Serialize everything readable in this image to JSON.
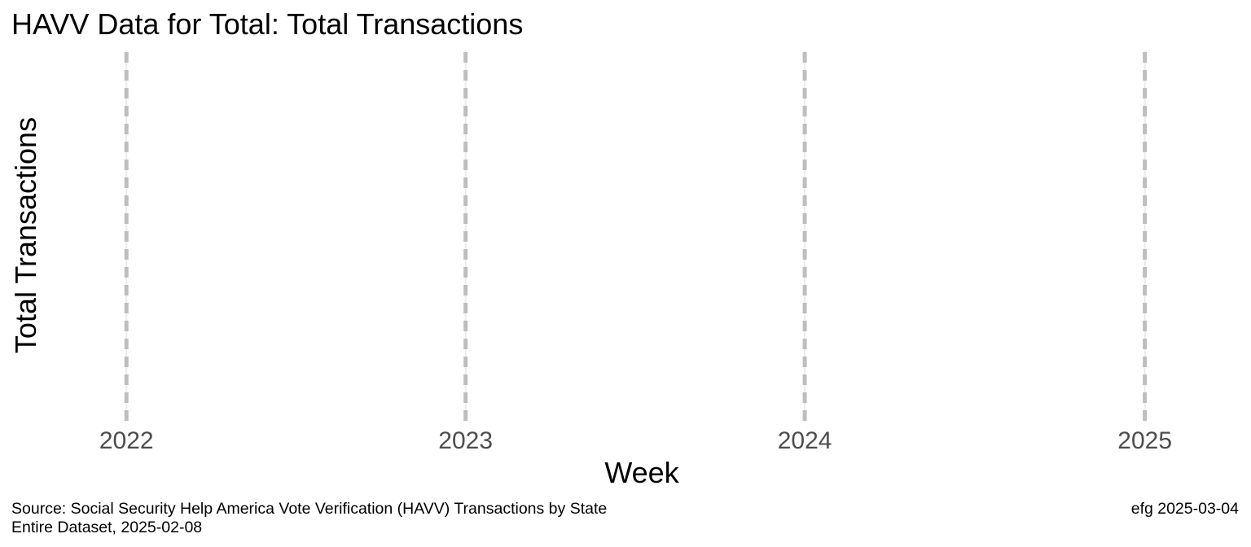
{
  "chart_data": {
    "type": "line",
    "title": "HAVV Data for Total:  Total Transactions",
    "xlabel": "Week",
    "ylabel": "Total Transactions",
    "x_ticks": [
      "2022",
      "2023",
      "2024",
      "2025"
    ],
    "xlim": [
      "2021-09-22",
      "2025-04-20"
    ],
    "series": [],
    "grid": true,
    "reference_lines": {
      "orientation": "vertical",
      "style": "dashed",
      "color": "#bebebe",
      "at": [
        "2022-01-01",
        "2023-01-01",
        "2024-01-01",
        "2025-01-01"
      ]
    },
    "legend": "none"
  },
  "caption": {
    "source_line": "Source:  Social Security Help America Vote Verification (HAVV) Transactions by State",
    "dataset_line": "Entire Dataset, 2025-02-08",
    "credit": "efg 2025-03-04"
  },
  "colors": {
    "grid_major": "#ebebeb",
    "reference_line": "#bebebe",
    "tick_text": "#4d4d4d",
    "text": "#000000",
    "background": "#ffffff"
  }
}
